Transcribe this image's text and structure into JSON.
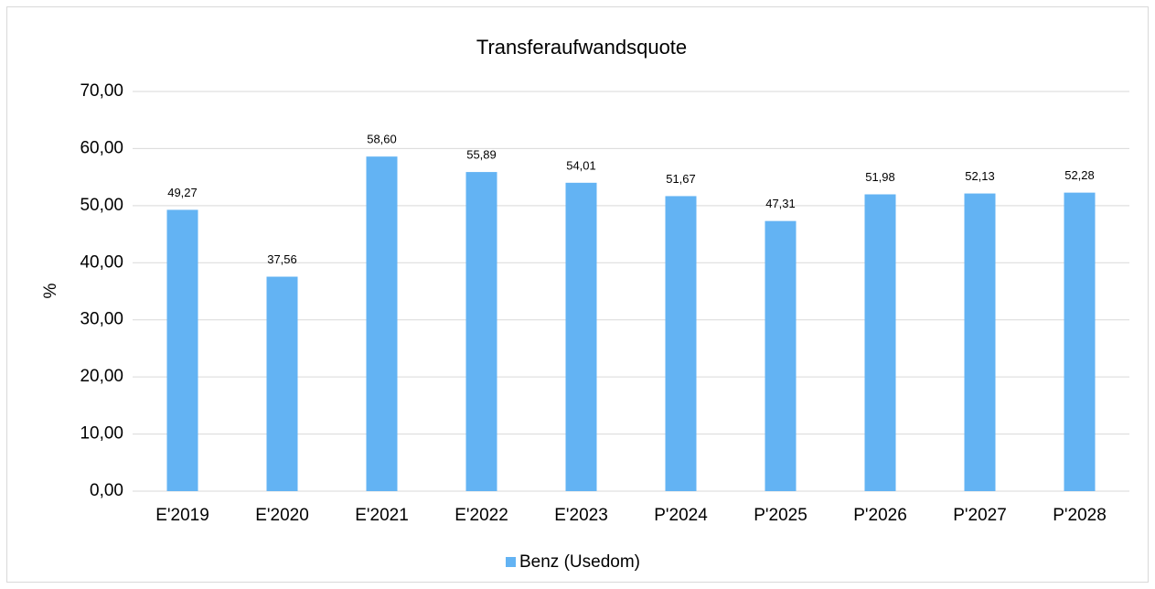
{
  "chart_data": {
    "type": "bar",
    "title": "Transferaufwandsquote",
    "y_label": "%",
    "categories": [
      "E'2019",
      "E'2020",
      "E'2021",
      "E'2022",
      "E'2023",
      "P'2024",
      "P'2025",
      "P'2026",
      "P'2027",
      "P'2028"
    ],
    "series": [
      {
        "name": "Benz (Usedom)",
        "color": "#63b3f3",
        "values": [
          49.27,
          37.56,
          58.6,
          55.89,
          54.01,
          51.67,
          47.31,
          51.98,
          52.13,
          52.28
        ],
        "value_labels": [
          "49,27",
          "37,56",
          "58,60",
          "55,89",
          "54,01",
          "51,67",
          "47,31",
          "51,98",
          "52,13",
          "52,28"
        ]
      }
    ],
    "ylim": [
      0,
      70
    ],
    "yticks": [
      {
        "value": 0,
        "label": "0,00"
      },
      {
        "value": 10,
        "label": "10,00"
      },
      {
        "value": 20,
        "label": "20,00"
      },
      {
        "value": 30,
        "label": "30,00"
      },
      {
        "value": 40,
        "label": "40,00"
      },
      {
        "value": 50,
        "label": "50,00"
      },
      {
        "value": 60,
        "label": "60,00"
      },
      {
        "value": 70,
        "label": "70,00"
      }
    ],
    "grid": true,
    "legend": "bottom"
  }
}
